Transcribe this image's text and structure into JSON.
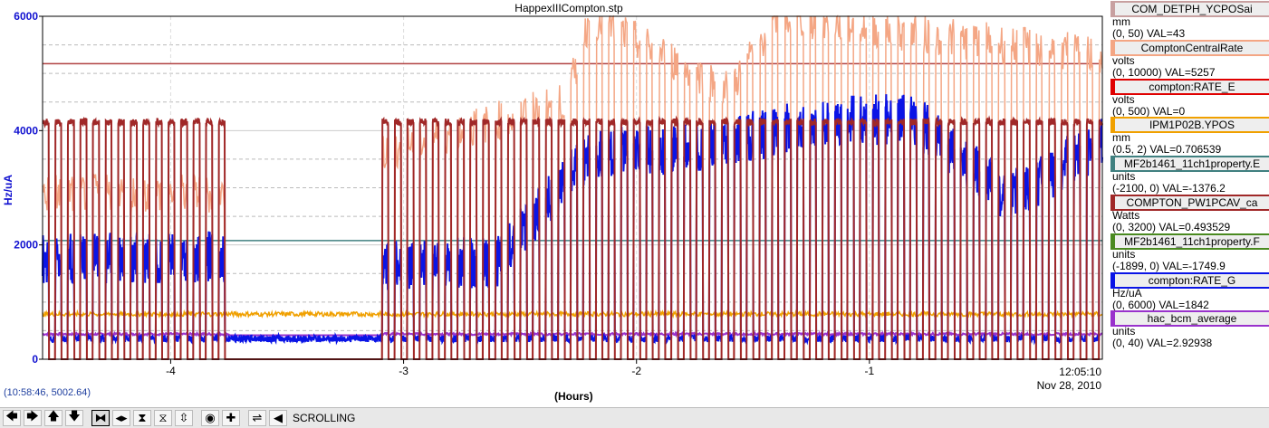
{
  "window_title": "HappexIIICompton.stp",
  "cursor_readout": "(10:58:46, 5002.64)",
  "x_unit_label": "(Hours)",
  "timestamp": {
    "time": "12:05:10",
    "date": "Nov 28, 2010"
  },
  "toolbar": {
    "buttons": [
      {
        "name": "scroll-left-button",
        "glyph": "🡄"
      },
      {
        "name": "scroll-right-button",
        "glyph": "🡆"
      },
      {
        "name": "scroll-up-button",
        "glyph": "🡅"
      },
      {
        "name": "scroll-down-button",
        "glyph": "🡇"
      },
      {
        "name": "zoom-in-both-button",
        "glyph": "⧓"
      },
      {
        "name": "zoom-in-horizontal-button",
        "glyph": "◂▸"
      },
      {
        "name": "zoom-out-horizontal-button",
        "glyph": "⧗"
      },
      {
        "name": "zoom-in-vertical-button",
        "glyph": "⧖"
      },
      {
        "name": "zoom-out-vertical-button",
        "glyph": "⇳"
      },
      {
        "name": "autozoom-button",
        "glyph": "◉"
      },
      {
        "name": "add-button",
        "glyph": "✚"
      },
      {
        "name": "scrolling-mode-button",
        "glyph": "⇌"
      },
      {
        "name": "back-button",
        "glyph": "◀"
      }
    ],
    "status": "SCROLLING"
  },
  "legend": [
    {
      "name": "COM_DETPH_YCPOSai",
      "color": "#c8a0a0",
      "unit": "mm",
      "range": "(0, 50)  VAL=43"
    },
    {
      "name": "ComptonCentralRate",
      "color": "#f4a684",
      "unit": "volts",
      "range": "(0, 10000)  VAL=5257"
    },
    {
      "name": "compton:RATE_E",
      "color": "#e00000",
      "unit": "volts",
      "range": "(0, 500)  VAL=0"
    },
    {
      "name": "IPM1P02B.YPOS",
      "color": "#f0a000",
      "unit": "mm",
      "range": "(0.5, 2)  VAL=0.706539"
    },
    {
      "name": "MF2b1461_11ch1property.E",
      "color": "#408080",
      "unit": "units",
      "range": "(-2100, 0)  VAL=-1376.2"
    },
    {
      "name": "COMPTON_PW1PCAV_ca",
      "color": "#a02828",
      "unit": "Watts",
      "range": "(0, 3200)  VAL=0.493529"
    },
    {
      "name": "MF2b1461_11ch1property.F",
      "color": "#4a8a20",
      "unit": "units",
      "range": "(-1899, 0)  VAL=-1749.9"
    },
    {
      "name": "compton:RATE_G",
      "color": "#0a14e6",
      "unit": "Hz/uA",
      "range": "(0, 6000)  VAL=1842"
    },
    {
      "name": "hac_bcm_average",
      "color": "#9932cc",
      "unit": "units",
      "range": "(0, 40)  VAL=2.92938"
    }
  ],
  "chart_data": {
    "type": "line",
    "title": "HappexIIICompton.stp",
    "xlabel": "(Hours)",
    "ylabel": "Hz/uA",
    "xlim": [
      -4.55,
      0.0
    ],
    "ylim": [
      0,
      6000
    ],
    "x_ticks": [
      -4,
      -3,
      -2,
      -1
    ],
    "x_tick_labels": [
      "-4",
      "-3",
      "-2",
      "-1"
    ],
    "y_ticks": [
      0,
      2000,
      4000,
      6000
    ],
    "y_tick_labels": [
      "0",
      "2000",
      "4000",
      "6000"
    ],
    "grid": true,
    "horizontal_lines": [
      {
        "name": "ComptonCentralRate",
        "y": 5170,
        "color": "#b04040"
      },
      {
        "name": "MF2b1461_11ch1property.E",
        "y": 2075,
        "color": "#408080"
      }
    ],
    "beam_on_intervals": [
      [
        -4.55,
        -3.75
      ],
      [
        -3.1,
        0.0
      ]
    ],
    "series": [
      {
        "name": "COMPTON_PW1PCAV_ca",
        "color": "#a02828",
        "pattern": "square_wave",
        "high": 4150,
        "low": 0,
        "period_hours": 0.054
      },
      {
        "name": "ComptonCentralRate",
        "color": "#f4a684",
        "segments": [
          [
            -4.55,
            2900
          ],
          [
            -3.75,
            2900
          ],
          [
            -2.3,
            4500
          ],
          [
            -2.2,
            6000
          ],
          [
            -1.6,
            4700
          ],
          [
            -1.4,
            6000
          ],
          [
            0.0,
            5300
          ]
        ]
      },
      {
        "name": "compton:RATE_G",
        "color": "#0a14e6",
        "segments": [
          [
            -4.55,
            1750
          ],
          [
            -3.75,
            1800
          ],
          [
            -3.1,
            1650
          ],
          [
            -2.6,
            1700
          ],
          [
            -2.2,
            3600
          ],
          [
            -1.7,
            3700
          ],
          [
            -1.2,
            4200
          ],
          [
            -0.8,
            4200
          ],
          [
            -0.4,
            2800
          ],
          [
            0.0,
            3800
          ]
        ]
      },
      {
        "name": "IPM1P02B.YPOS",
        "color": "#f0a000",
        "level": 790
      },
      {
        "name": "hac_bcm_average",
        "color": "#9932cc",
        "level": 440
      }
    ]
  }
}
